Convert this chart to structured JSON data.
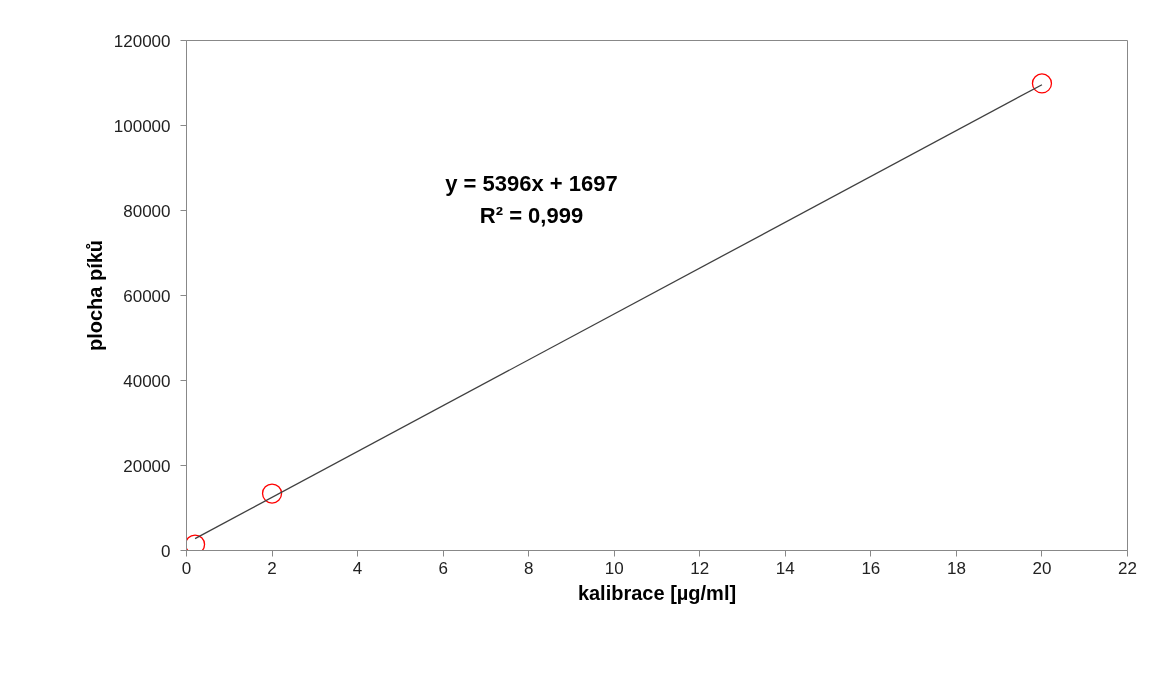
{
  "chart_data": {
    "type": "scatter",
    "xlabel": "kalibrace [µg/ml]",
    "ylabel": "plocha píků",
    "xlim": [
      0,
      22
    ],
    "xticks": [
      0,
      2,
      4,
      6,
      8,
      10,
      12,
      14,
      16,
      18,
      20,
      22
    ],
    "ylim": [
      0,
      120000
    ],
    "yticks": [
      0,
      20000,
      40000,
      60000,
      80000,
      100000,
      120000
    ],
    "grid": false,
    "annotations": [
      "y = 5396x + 1697\nR² = 0,999"
    ],
    "series": [
      {
        "marker": "circle",
        "color": "#ff0000",
        "x": [
          0.2,
          2,
          20
        ],
        "values": [
          1400,
          13400,
          109900
        ]
      },
      {
        "type": "line",
        "marker": "none",
        "color": "#404040",
        "x": [
          0.2,
          20
        ],
        "values": [
          2800,
          109600
        ]
      }
    ]
  }
}
